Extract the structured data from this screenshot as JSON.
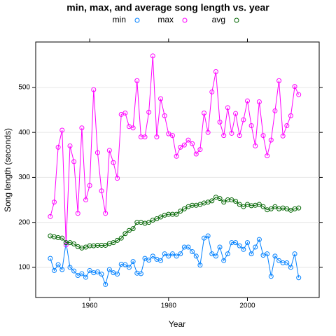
{
  "chart_data": {
    "type": "line",
    "title": "min, max, and average song length vs. year",
    "xlabel": "Year",
    "ylabel": "Song length (seconds)",
    "x": [
      1950,
      1951,
      1952,
      1953,
      1954,
      1955,
      1956,
      1957,
      1958,
      1959,
      1960,
      1961,
      1962,
      1963,
      1964,
      1965,
      1966,
      1967,
      1968,
      1969,
      1970,
      1971,
      1972,
      1973,
      1974,
      1975,
      1976,
      1977,
      1978,
      1979,
      1980,
      1981,
      1982,
      1983,
      1984,
      1985,
      1986,
      1987,
      1988,
      1989,
      1990,
      1991,
      1992,
      1993,
      1994,
      1995,
      1996,
      1997,
      1998,
      1999,
      2000,
      2001,
      2002,
      2003,
      2004,
      2005,
      2006,
      2007,
      2008,
      2009,
      2010,
      2011,
      2012,
      2013
    ],
    "series": [
      {
        "name": "min",
        "color": "#0080ff",
        "values": [
          120,
          93,
          106,
          95,
          155,
          100,
          92,
          82,
          86,
          78,
          93,
          88,
          90,
          85,
          62,
          95,
          88,
          85,
          107,
          106,
          100,
          113,
          87,
          86,
          120,
          116,
          125,
          118,
          115,
          130,
          125,
          130,
          125,
          130,
          145,
          145,
          135,
          125,
          105,
          165,
          170,
          130,
          125,
          145,
          115,
          130,
          155,
          155,
          148,
          140,
          155,
          130,
          145,
          162,
          127,
          130,
          80,
          125,
          115,
          110,
          110,
          100,
          130,
          77
        ]
      },
      {
        "name": "max",
        "color": "#ff00ff",
        "values": [
          213,
          245,
          367,
          405,
          150,
          370,
          335,
          220,
          410,
          250,
          282,
          495,
          355,
          270,
          220,
          360,
          333,
          298,
          440,
          443,
          413,
          410,
          515,
          390,
          390,
          445,
          570,
          390,
          475,
          437,
          397,
          393,
          347,
          367,
          372,
          383,
          375,
          352,
          362,
          443,
          400,
          490,
          535,
          423,
          393,
          455,
          398,
          442,
          393,
          428,
          470,
          415,
          370,
          468,
          393,
          348,
          383,
          448,
          515,
          392,
          415,
          437,
          502,
          484
        ]
      },
      {
        "name": "avg",
        "color": "#006400",
        "values": [
          170,
          168,
          166,
          165,
          155,
          155,
          152,
          146,
          143,
          145,
          148,
          148,
          149,
          149,
          149,
          153,
          155,
          160,
          165,
          175,
          182,
          186,
          200,
          200,
          198,
          200,
          205,
          208,
          212,
          216,
          218,
          218,
          218,
          225,
          230,
          235,
          238,
          238,
          240,
          243,
          245,
          248,
          256,
          253,
          245,
          250,
          250,
          247,
          240,
          235,
          240,
          237,
          238,
          240,
          235,
          228,
          230,
          235,
          230,
          232,
          230,
          227,
          230,
          232
        ]
      }
    ],
    "xlim": [
      1946.3,
      2018.2
    ],
    "xticks": [
      1960,
      1980,
      2000
    ],
    "ylim": [
      33,
      601
    ],
    "yticks": [
      100,
      200,
      300,
      400,
      500
    ],
    "grid": true
  }
}
